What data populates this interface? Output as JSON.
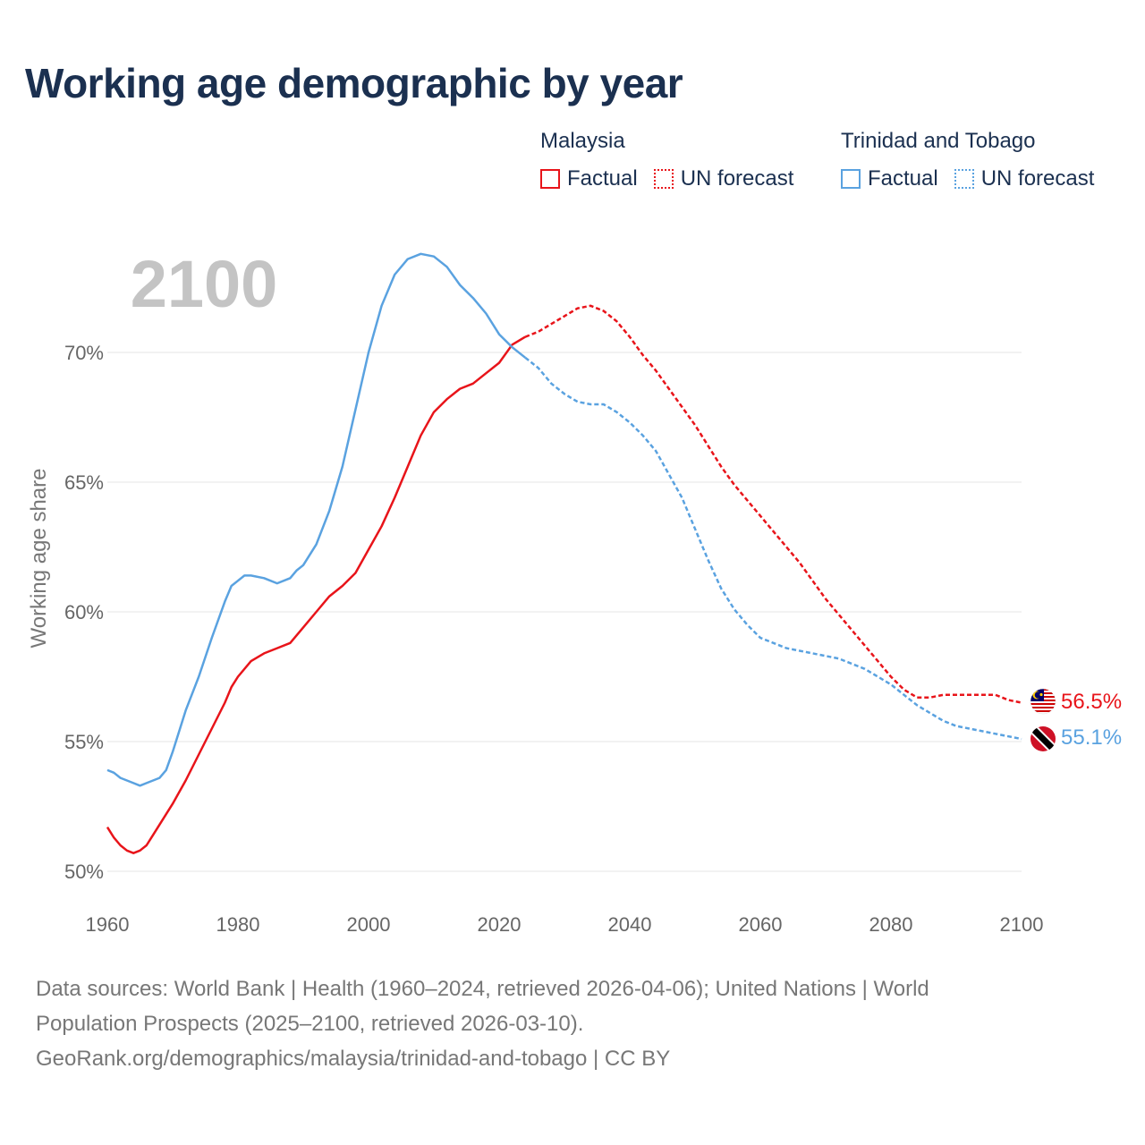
{
  "title": "Working age demographic by year",
  "legend": {
    "groups": [
      {
        "name": "Malaysia",
        "factual_label": "Factual",
        "forecast_label": "UN forecast",
        "color": "#e8141a"
      },
      {
        "name": "Trinidad and Tobago",
        "factual_label": "Factual",
        "forecast_label": "UN forecast",
        "color": "#5aa2e0"
      }
    ]
  },
  "chart_data": {
    "type": "line",
    "title": "Working age demographic by year",
    "xlabel": "",
    "ylabel": "Working age share",
    "xlim": [
      1960,
      2100
    ],
    "ylim": [
      50,
      73.5
    ],
    "x_ticks": [
      1960,
      1980,
      2000,
      2020,
      2040,
      2060,
      2080,
      2100
    ],
    "x_tick_labels": [
      "1960",
      "1980",
      "2000",
      "2020",
      "2040",
      "2060",
      "2080",
      "2100"
    ],
    "y_ticks": [
      50,
      55,
      60,
      65,
      70
    ],
    "y_tick_labels": [
      "50%",
      "55%",
      "60%",
      "65%",
      "70%"
    ],
    "year_label": "2100",
    "factual_end_year": 2024,
    "series": [
      {
        "name": "Malaysia",
        "color": "#e8141a",
        "end_label": "56.5%",
        "points": [
          [
            1960,
            51.7
          ],
          [
            1961,
            51.3
          ],
          [
            1962,
            51.0
          ],
          [
            1963,
            50.8
          ],
          [
            1964,
            50.7
          ],
          [
            1965,
            50.8
          ],
          [
            1966,
            51.0
          ],
          [
            1967,
            51.4
          ],
          [
            1968,
            51.8
          ],
          [
            1970,
            52.6
          ],
          [
            1972,
            53.5
          ],
          [
            1974,
            54.5
          ],
          [
            1976,
            55.5
          ],
          [
            1978,
            56.5
          ],
          [
            1979,
            57.1
          ],
          [
            1980,
            57.5
          ],
          [
            1982,
            58.1
          ],
          [
            1984,
            58.4
          ],
          [
            1986,
            58.6
          ],
          [
            1988,
            58.8
          ],
          [
            1990,
            59.4
          ],
          [
            1992,
            60.0
          ],
          [
            1994,
            60.6
          ],
          [
            1996,
            61.0
          ],
          [
            1998,
            61.5
          ],
          [
            2000,
            62.4
          ],
          [
            2002,
            63.3
          ],
          [
            2004,
            64.4
          ],
          [
            2006,
            65.6
          ],
          [
            2008,
            66.8
          ],
          [
            2010,
            67.7
          ],
          [
            2012,
            68.2
          ],
          [
            2014,
            68.6
          ],
          [
            2016,
            68.8
          ],
          [
            2018,
            69.2
          ],
          [
            2020,
            69.6
          ],
          [
            2022,
            70.3
          ],
          [
            2024,
            70.6
          ],
          [
            2026,
            70.8
          ],
          [
            2028,
            71.1
          ],
          [
            2030,
            71.4
          ],
          [
            2032,
            71.7
          ],
          [
            2034,
            71.8
          ],
          [
            2036,
            71.6
          ],
          [
            2038,
            71.2
          ],
          [
            2040,
            70.6
          ],
          [
            2042,
            69.9
          ],
          [
            2044,
            69.3
          ],
          [
            2046,
            68.6
          ],
          [
            2048,
            67.9
          ],
          [
            2050,
            67.2
          ],
          [
            2052,
            66.4
          ],
          [
            2054,
            65.6
          ],
          [
            2056,
            64.9
          ],
          [
            2058,
            64.3
          ],
          [
            2060,
            63.7
          ],
          [
            2062,
            63.1
          ],
          [
            2064,
            62.5
          ],
          [
            2066,
            61.9
          ],
          [
            2068,
            61.2
          ],
          [
            2070,
            60.5
          ],
          [
            2072,
            59.9
          ],
          [
            2074,
            59.3
          ],
          [
            2076,
            58.7
          ],
          [
            2078,
            58.1
          ],
          [
            2080,
            57.5
          ],
          [
            2082,
            57.0
          ],
          [
            2084,
            56.7
          ],
          [
            2086,
            56.7
          ],
          [
            2088,
            56.8
          ],
          [
            2090,
            56.8
          ],
          [
            2092,
            56.8
          ],
          [
            2094,
            56.8
          ],
          [
            2096,
            56.8
          ],
          [
            2098,
            56.6
          ],
          [
            2100,
            56.5
          ]
        ]
      },
      {
        "name": "Trinidad and Tobago",
        "color": "#5aa2e0",
        "end_label": "55.1%",
        "points": [
          [
            1960,
            53.9
          ],
          [
            1961,
            53.8
          ],
          [
            1962,
            53.6
          ],
          [
            1964,
            53.4
          ],
          [
            1965,
            53.3
          ],
          [
            1966,
            53.4
          ],
          [
            1968,
            53.6
          ],
          [
            1969,
            53.9
          ],
          [
            1970,
            54.6
          ],
          [
            1972,
            56.2
          ],
          [
            1974,
            57.5
          ],
          [
            1976,
            59.0
          ],
          [
            1978,
            60.4
          ],
          [
            1979,
            61.0
          ],
          [
            1980,
            61.2
          ],
          [
            1981,
            61.4
          ],
          [
            1982,
            61.4
          ],
          [
            1984,
            61.3
          ],
          [
            1986,
            61.1
          ],
          [
            1988,
            61.3
          ],
          [
            1989,
            61.6
          ],
          [
            1990,
            61.8
          ],
          [
            1992,
            62.6
          ],
          [
            1994,
            63.9
          ],
          [
            1996,
            65.6
          ],
          [
            1998,
            67.8
          ],
          [
            2000,
            70.0
          ],
          [
            2002,
            71.8
          ],
          [
            2004,
            73.0
          ],
          [
            2006,
            73.6
          ],
          [
            2008,
            73.8
          ],
          [
            2010,
            73.7
          ],
          [
            2012,
            73.3
          ],
          [
            2014,
            72.6
          ],
          [
            2016,
            72.1
          ],
          [
            2018,
            71.5
          ],
          [
            2020,
            70.7
          ],
          [
            2022,
            70.2
          ],
          [
            2024,
            69.8
          ],
          [
            2026,
            69.4
          ],
          [
            2028,
            68.8
          ],
          [
            2030,
            68.4
          ],
          [
            2032,
            68.1
          ],
          [
            2034,
            68.0
          ],
          [
            2036,
            68.0
          ],
          [
            2038,
            67.7
          ],
          [
            2040,
            67.3
          ],
          [
            2042,
            66.8
          ],
          [
            2044,
            66.2
          ],
          [
            2046,
            65.3
          ],
          [
            2048,
            64.4
          ],
          [
            2050,
            63.2
          ],
          [
            2052,
            62.0
          ],
          [
            2054,
            60.9
          ],
          [
            2056,
            60.1
          ],
          [
            2058,
            59.5
          ],
          [
            2060,
            59.0
          ],
          [
            2062,
            58.8
          ],
          [
            2064,
            58.6
          ],
          [
            2066,
            58.5
          ],
          [
            2068,
            58.4
          ],
          [
            2070,
            58.3
          ],
          [
            2072,
            58.2
          ],
          [
            2074,
            58.0
          ],
          [
            2076,
            57.8
          ],
          [
            2078,
            57.5
          ],
          [
            2080,
            57.2
          ],
          [
            2082,
            56.8
          ],
          [
            2084,
            56.4
          ],
          [
            2086,
            56.1
          ],
          [
            2088,
            55.8
          ],
          [
            2090,
            55.6
          ],
          [
            2092,
            55.5
          ],
          [
            2094,
            55.4
          ],
          [
            2096,
            55.3
          ],
          [
            2098,
            55.2
          ],
          [
            2100,
            55.1
          ]
        ]
      }
    ]
  },
  "footer": {
    "line1": "Data sources: World Bank | Health (1960–2024, retrieved 2026-04-06); United Nations | World",
    "line2": "Population Prospects (2025–2100, retrieved 2026-03-10).",
    "line3": "GeoRank.org/demographics/malaysia/trinidad-and-tobago | CC BY"
  }
}
